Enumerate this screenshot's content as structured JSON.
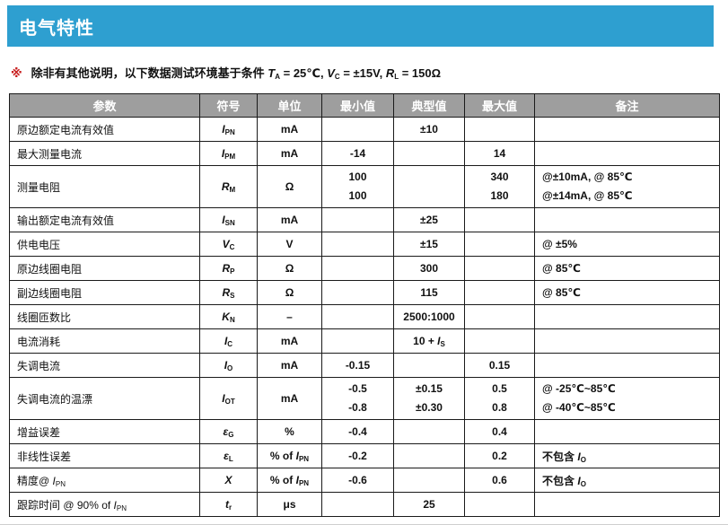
{
  "title": "电气特性",
  "note": {
    "mark": "※",
    "text": "除非有其他说明，以下数据测试环境基于条件 *T*~A~ = 25℃, *V*~C~ = ±15V, *R*~L~ = 150Ω"
  },
  "colors": {
    "accent_blue": "#2e9fd0",
    "header_gray": "#9e9e9e",
    "note_mark_red": "#c81e1e"
  },
  "table": {
    "headers": [
      "参数",
      "符号",
      "单位",
      "最小值",
      "典型值",
      "最大值",
      "备注"
    ],
    "rows": [
      {
        "param": "原边额定电流有效值",
        "symbol": "*I*~PN~",
        "unit": "mA",
        "min": "",
        "typ": "±10",
        "max": "",
        "note": ""
      },
      {
        "param": "最大测量电流",
        "symbol": "*I*~PM~",
        "unit": "mA",
        "min": "-14",
        "typ": "",
        "max": "14",
        "note": ""
      },
      {
        "param": "测量电阻",
        "symbol": "*R*~M~",
        "unit": "Ω",
        "min": [
          "100",
          "100"
        ],
        "typ": "",
        "max": [
          "340",
          "180"
        ],
        "note": [
          "@±10mA,  @ 85℃",
          "@±14mA,  @ 85℃"
        ]
      },
      {
        "param": "输出额定电流有效值",
        "symbol": "*I*~SN~",
        "unit": "mA",
        "min": "",
        "typ": "±25",
        "max": "",
        "note": ""
      },
      {
        "param": "供电电压",
        "symbol": "*V*~C~",
        "unit": "V",
        "min": "",
        "typ": "±15",
        "max": "",
        "note": "@ ±5%"
      },
      {
        "param": "原边线圈电阻",
        "symbol": "*R*~P~",
        "unit": "Ω",
        "min": "",
        "typ": "300",
        "max": "",
        "note": "@ 85℃"
      },
      {
        "param": "副边线圈电阻",
        "symbol": "*R*~S~",
        "unit": "Ω",
        "min": "",
        "typ": "115",
        "max": "",
        "note": "@ 85℃"
      },
      {
        "param": "线圈匝数比",
        "symbol": "*K*~N~",
        "unit": "–",
        "min": "",
        "typ": "2500:1000",
        "max": "",
        "note": ""
      },
      {
        "param": "电流消耗",
        "symbol": "*I*~C~",
        "unit": "mA",
        "min": "",
        "typ": "10 + *I*~S~",
        "max": "",
        "note": ""
      },
      {
        "param": "失调电流",
        "symbol": "*I*~O~",
        "unit": "mA",
        "min": "-0.15",
        "typ": "",
        "max": "0.15",
        "note": ""
      },
      {
        "param": "失调电流的温漂",
        "symbol": "*I*~OT~",
        "unit": "mA",
        "min": [
          "-0.5",
          "-0.8"
        ],
        "typ": [
          "±0.15",
          "±0.30"
        ],
        "max": [
          "0.5",
          "0.8"
        ],
        "note": [
          "@ -25℃~85℃",
          "@ -40℃~85℃"
        ]
      },
      {
        "param": "增益误差",
        "symbol": "*ε*~G~",
        "unit": "%",
        "min": "-0.4",
        "typ": "",
        "max": "0.4",
        "note": ""
      },
      {
        "param": "非线性误差",
        "symbol": "*ε*~L~",
        "unit": "% of *I*~PN~",
        "min": "-0.2",
        "typ": "",
        "max": "0.2",
        "note": "不包含 *I*~O~"
      },
      {
        "param": "精度@ *I*~PN~",
        "symbol": "*X*",
        "unit": "% of *I*~PN~",
        "min": "-0.6",
        "typ": "",
        "max": "0.6",
        "note": "不包含 *I*~O~"
      },
      {
        "param": "跟踪时间  @ 90% of *I*~PN~",
        "symbol": "*t*~r~",
        "unit": "μs",
        "min": "",
        "typ": "25",
        "max": "",
        "note": ""
      }
    ]
  }
}
